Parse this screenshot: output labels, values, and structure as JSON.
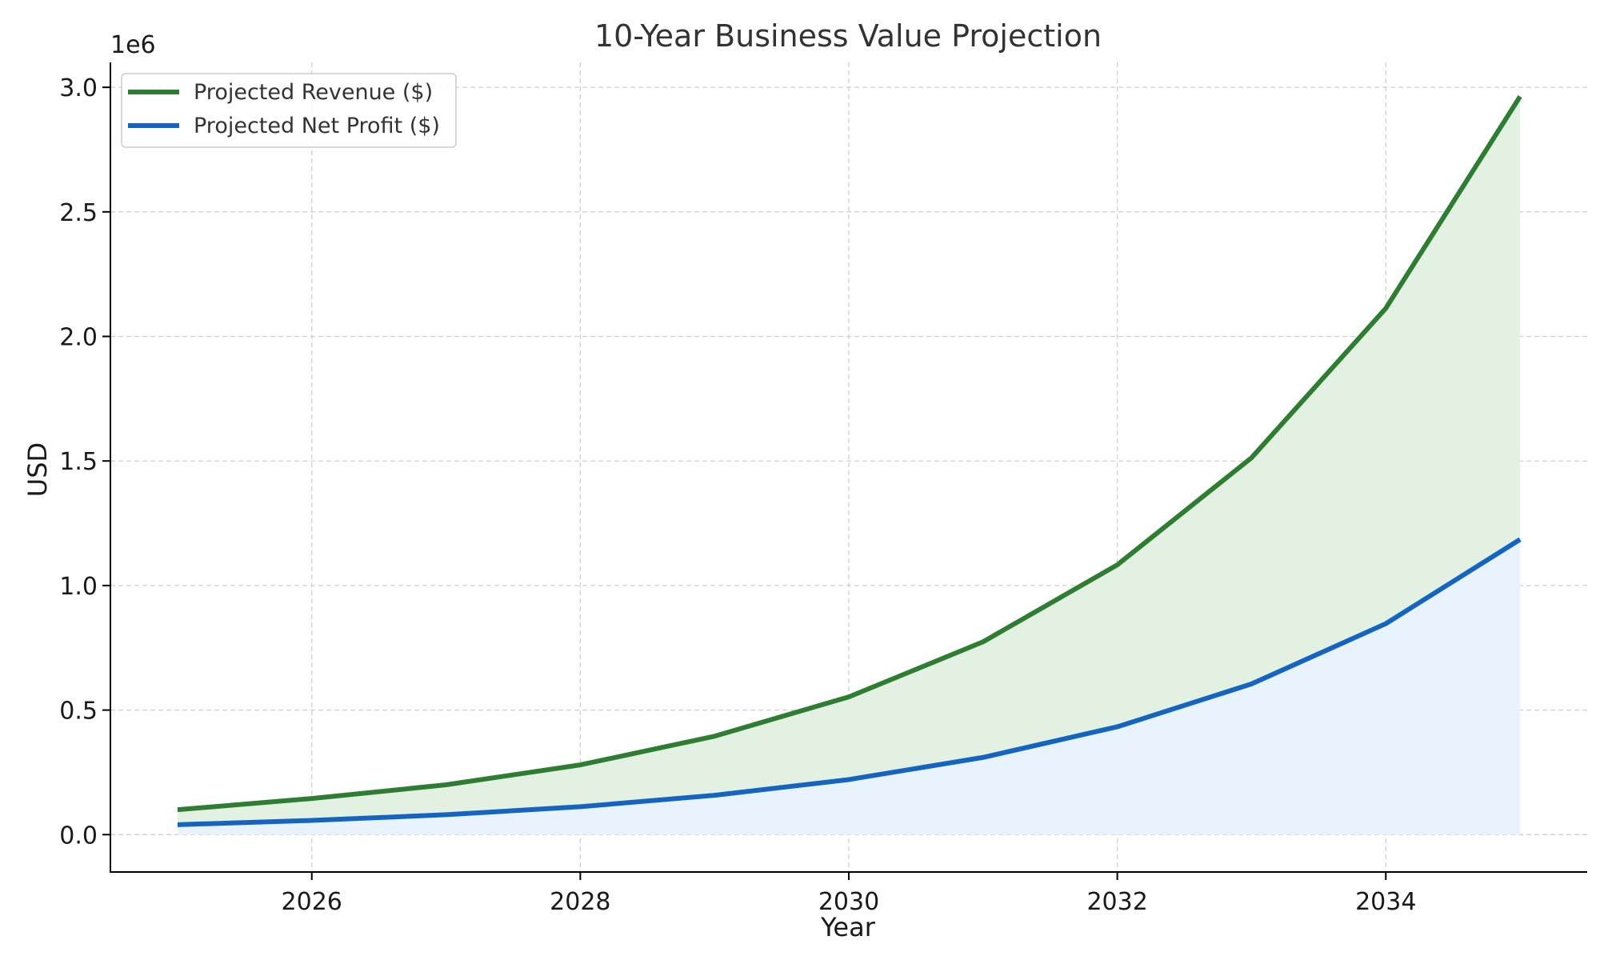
{
  "chart_data": {
    "type": "area",
    "title": "10-Year Business Value Projection",
    "xlabel": "Year",
    "ylabel": "USD",
    "y_offset_label": "1e6",
    "x": [
      2025,
      2026,
      2027,
      2028,
      2029,
      2030,
      2031,
      2032,
      2033,
      2034,
      2035
    ],
    "series": [
      {
        "name": "Projected Revenue ($)",
        "color": "#2e7d32",
        "fill_color": "#e2f1e1",
        "values": [
          100000,
          145000,
          200000,
          280000,
          395000,
          553000,
          774000,
          1083000,
          1513000,
          2113000,
          2963000
        ]
      },
      {
        "name": "Projected Net Profit ($)",
        "color": "#1565c0",
        "fill_color": "#e8f3fd",
        "values": [
          40000,
          57000,
          80000,
          112000,
          158000,
          221000,
          310000,
          433000,
          605000,
          847000,
          1185000
        ]
      }
    ],
    "xlim": [
      2024.5,
      2035.5
    ],
    "ylim": [
      -150000,
      3100000
    ],
    "xticks": [
      2026,
      2028,
      2030,
      2032,
      2034
    ],
    "yticks": [
      0,
      0.5,
      1.0,
      1.5,
      2.0,
      2.5,
      3.0
    ],
    "ytick_labels": [
      "0.0",
      "0.5",
      "1.0",
      "1.5",
      "2.0",
      "2.5",
      "3.0"
    ],
    "grid": true,
    "legend_position": "top-left"
  }
}
